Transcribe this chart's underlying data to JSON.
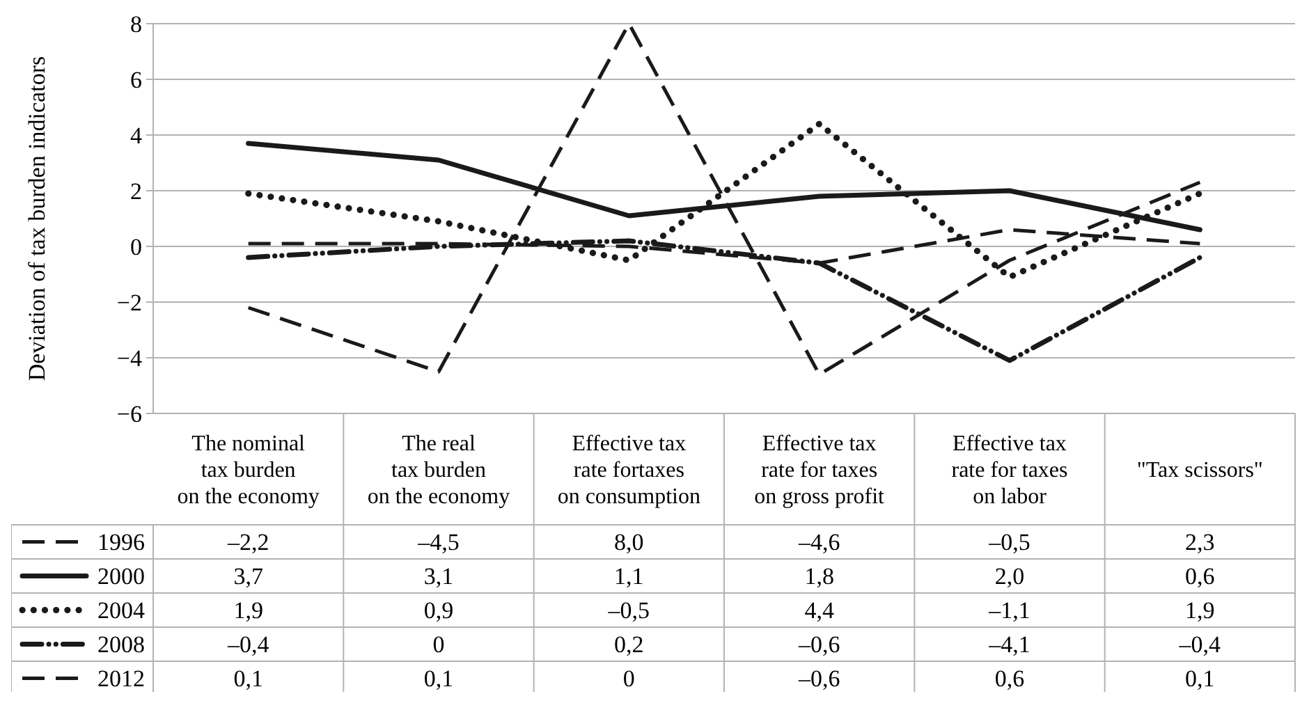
{
  "chart_data": {
    "type": "line",
    "ylabel": "Deviation of tax burden indicators",
    "categories": [
      "The nominal\ntax burden\non the economy",
      "The real\ntax burden\non the economy",
      "Effective tax\nrate fortaxes\non consumption",
      "Effective tax\nrate for taxes\non gross profit",
      "Effective tax\nrate for taxes\non labor",
      "\"Tax scissors\""
    ],
    "ylim": [
      -6,
      8
    ],
    "yticks": [
      {
        "value": -6,
        "label": "−6"
      },
      {
        "value": -4,
        "label": "−4"
      },
      {
        "value": -2,
        "label": "−2"
      },
      0,
      2,
      4,
      6,
      8
    ],
    "grid": "y",
    "legend": "bottom",
    "series": [
      {
        "name": "1996",
        "color": "#1a1a1a",
        "line_style": "dashed",
        "values": [
          -2.2,
          -4.5,
          8.0,
          -4.6,
          -0.5,
          2.3
        ],
        "value_labels": [
          "–2,2",
          "–4,5",
          "8,0",
          "–4,6",
          "–0,5",
          "2,3"
        ]
      },
      {
        "name": "2000",
        "color": "#1a1a1a",
        "line_style": "solid",
        "values": [
          3.7,
          3.1,
          1.1,
          1.8,
          2.0,
          0.6
        ],
        "value_labels": [
          "3,7",
          "3,1",
          "1,1",
          "1,8",
          "2,0",
          "0,6"
        ]
      },
      {
        "name": "2004",
        "color": "#1a1a1a",
        "line_style": "dotted",
        "values": [
          1.9,
          0.9,
          -0.5,
          4.4,
          -1.1,
          1.9
        ],
        "value_labels": [
          "1,9",
          "0,9",
          "–0,5",
          "4,4",
          "–1,1",
          "1,9"
        ]
      },
      {
        "name": "2008",
        "color": "#1a1a1a",
        "line_style": "dashdot",
        "values": [
          -0.4,
          0,
          0.2,
          -0.6,
          -4.1,
          -0.4
        ],
        "value_labels": [
          "–0,4",
          "0",
          "0,2",
          "–0,6",
          "–4,1",
          "–0,4"
        ]
      },
      {
        "name": "2012",
        "color": "#1a1a1a",
        "line_style": "dashed",
        "values": [
          0.1,
          0.1,
          0,
          -0.6,
          0.6,
          0.1
        ],
        "value_labels": [
          "0,1",
          "0,1",
          "0",
          "–0,6",
          "0,6",
          "0,1"
        ]
      }
    ]
  }
}
